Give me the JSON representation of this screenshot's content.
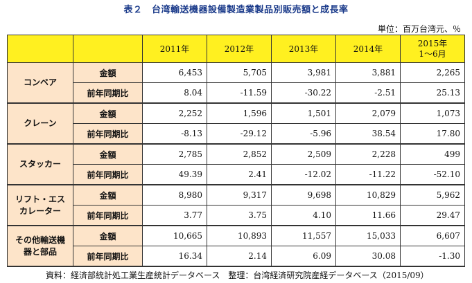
{
  "title": "表２　台湾輸送機器設備製造業製品別販売額と成長率",
  "unit": "単位：百万台湾元、％",
  "columns": [
    "2011年",
    "2012年",
    "2013年",
    "2014年",
    "2015年",
    "1～6月"
  ],
  "metric_amount": "金額",
  "metric_growth": "前年同期比",
  "categories": [
    {
      "line1": "コンベア",
      "line2": "",
      "amount": [
        "6,453",
        "5,705",
        "3,981",
        "3,881",
        "2,265"
      ],
      "growth": [
        "8.04",
        "-11.59",
        "-30.22",
        "-2.51",
        "25.13"
      ]
    },
    {
      "line1": "クレーン",
      "line2": "",
      "amount": [
        "2,252",
        "1,596",
        "1,501",
        "2,079",
        "1,073"
      ],
      "growth": [
        "-8.13",
        "-29.12",
        "-5.96",
        "38.54",
        "17.80"
      ]
    },
    {
      "line1": "スタッカー",
      "line2": "",
      "amount": [
        "2,785",
        "2,852",
        "2,509",
        "2,228",
        "499"
      ],
      "growth": [
        "49.39",
        "2.41",
        "-12.02",
        "-11.22",
        "-52.10"
      ]
    },
    {
      "line1": "リフト・エス",
      "line2": "カレーター",
      "amount": [
        "8,980",
        "9,317",
        "9,698",
        "10,829",
        "5,962"
      ],
      "growth": [
        "3.77",
        "3.75",
        "4.10",
        "11.66",
        "29.47"
      ]
    },
    {
      "line1": "その他輸送機",
      "line2": "器と部品",
      "amount": [
        "10,665",
        "10,893",
        "11,557",
        "15,033",
        "6,607"
      ],
      "growth": [
        "16.34",
        "2.14",
        "6.09",
        "30.08",
        "-1.30"
      ]
    }
  ],
  "source": "資料：経済部統計処工業生産統計データベース　整理：台湾経済研究院産経データベース（2015/09）"
}
